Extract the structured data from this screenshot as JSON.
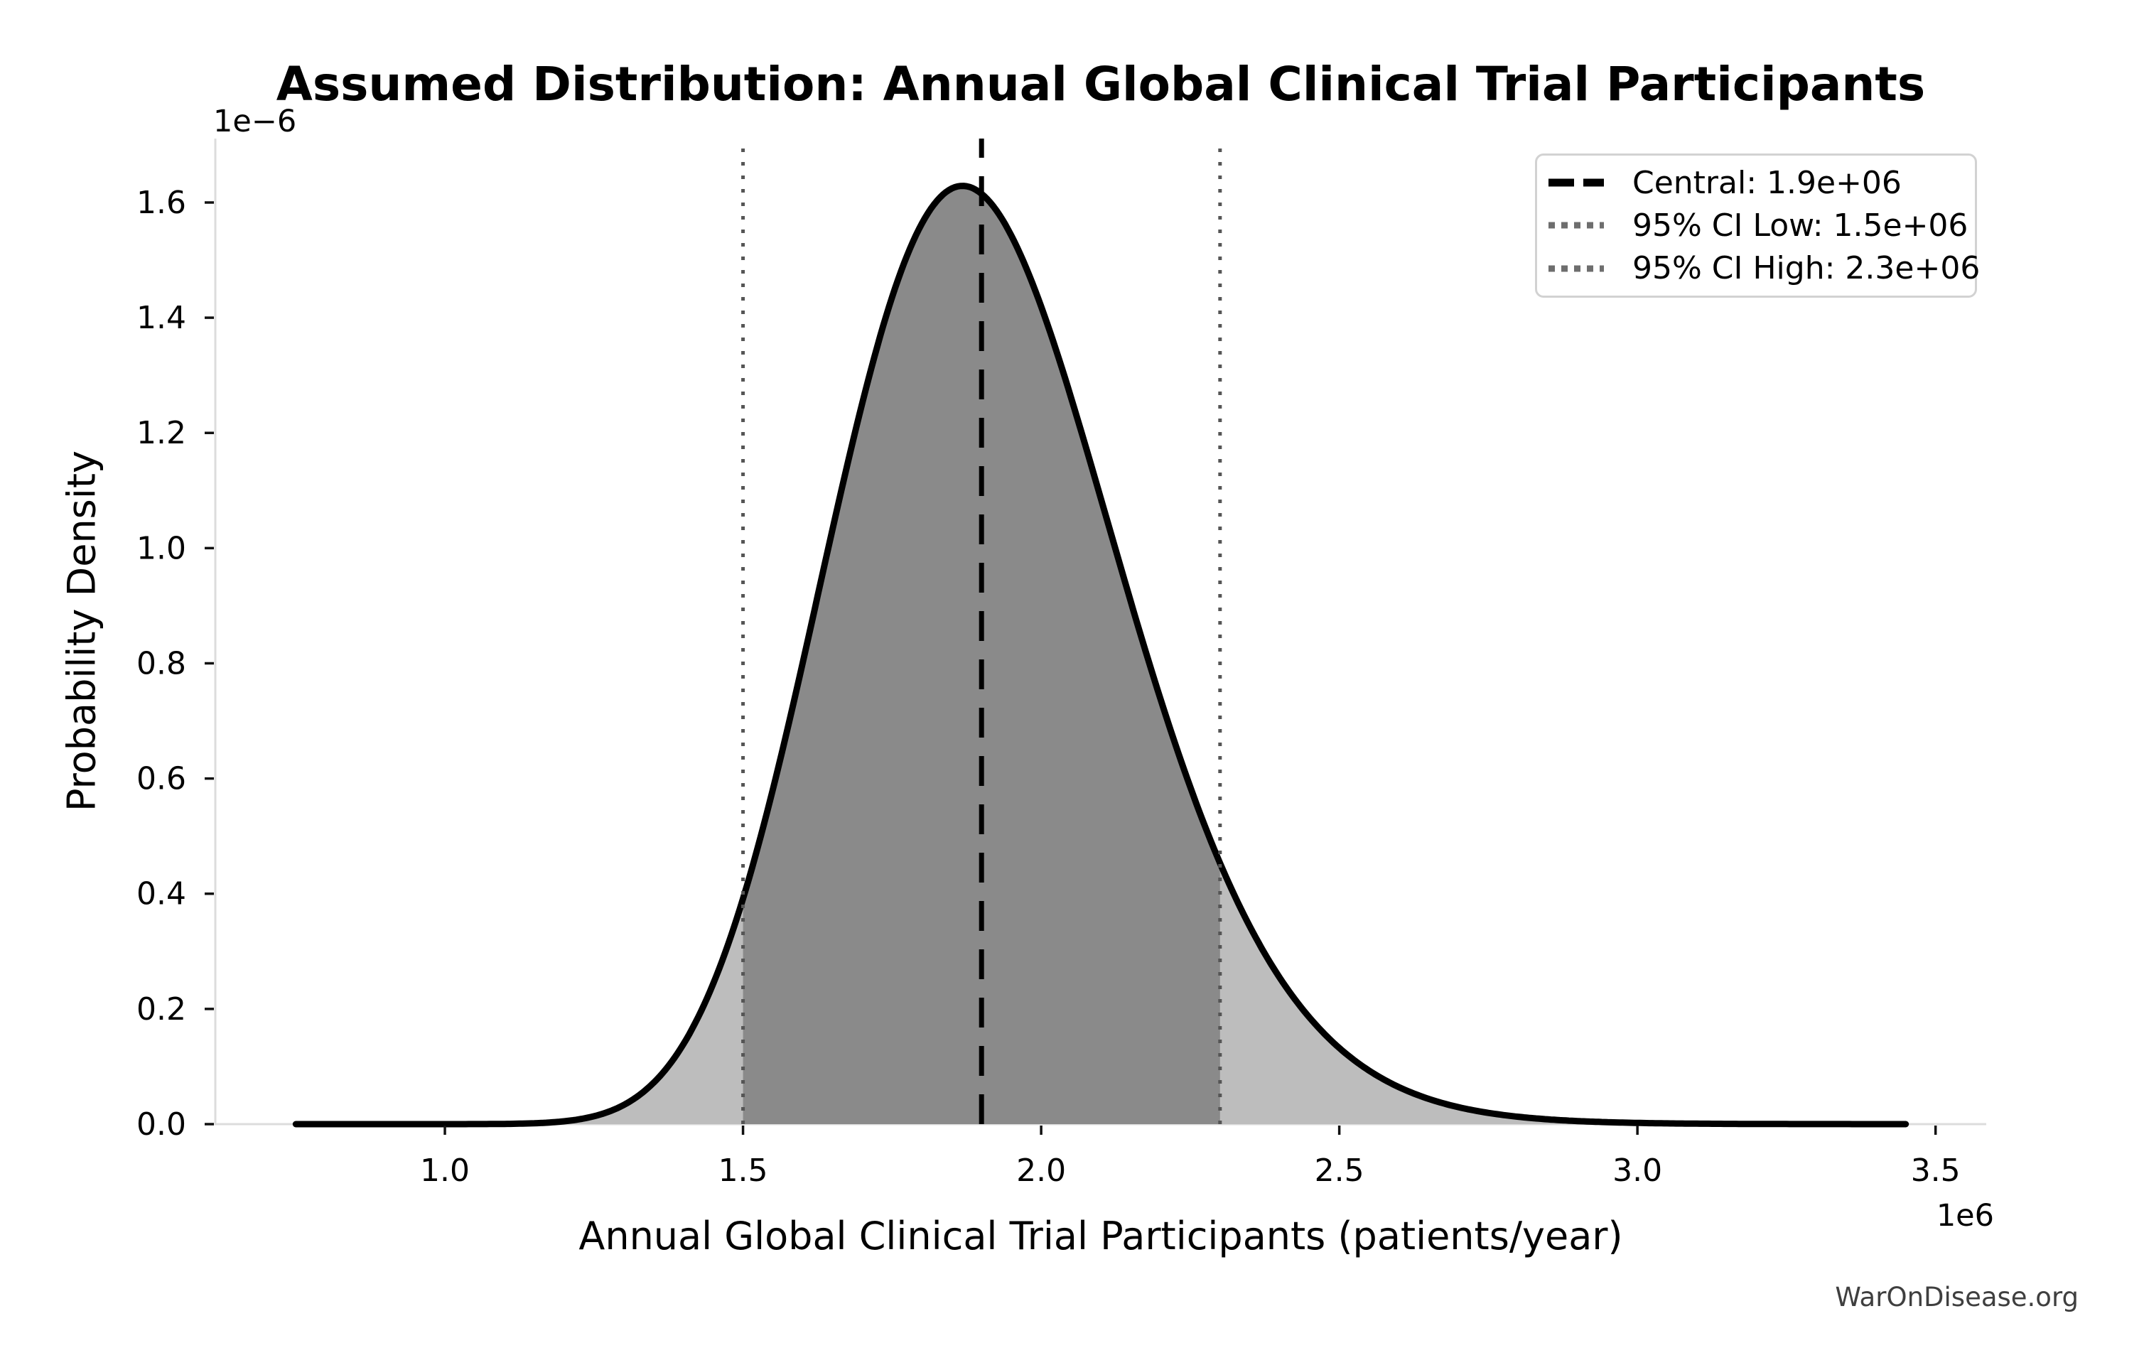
{
  "watermark": "WarOnDisease.org",
  "chart_data": {
    "type": "area",
    "subtype": "probability-density-curve",
    "title": "Assumed Distribution: Annual Global Clinical Trial Participants",
    "xlabel": "Annual Global Clinical Trial Participants (patients/year)",
    "ylabel": "Probability Density",
    "x_offset_text": "1e6",
    "y_offset_text": "1e−6",
    "x_ticks": [
      "1.0",
      "1.5",
      "2.0",
      "2.5",
      "3.0",
      "3.5"
    ],
    "y_ticks": [
      "0.0",
      "0.2",
      "0.4",
      "0.6",
      "0.8",
      "1.0",
      "1.2",
      "1.4",
      "1.6"
    ],
    "xlim_1e6": [
      0.615,
      3.585
    ],
    "ylim_1e6": [
      0,
      1.711
    ],
    "grid": false,
    "curve": {
      "kind": "lognormal_pdf",
      "median_1e6": 1.9,
      "sigma_log": 0.13,
      "x_start_1e6": 0.75,
      "x_end_1e6": 3.45,
      "peak_density_1e6": 1.63,
      "peak_x_1e6": 1.87
    },
    "markers": {
      "central_1e6": 1.9,
      "ci_low_1e6": 1.5,
      "ci_high_1e6": 2.3
    },
    "legend": {
      "position": "upper right",
      "items": [
        {
          "label": "Central: 1.9e+06",
          "style": "dashed",
          "color": "#000000"
        },
        {
          "label": "95% CI Low: 1.5e+06",
          "style": "dotted",
          "color": "#6e6e6e"
        },
        {
          "label": "95% CI High: 2.3e+06",
          "style": "dotted",
          "color": "#6e6e6e"
        }
      ]
    },
    "colors": {
      "curve": "#000000",
      "fill_outer": "#bdbdbd",
      "fill_ci": "#8a8a8a",
      "central_line": "#000000",
      "ci_line": "#555555",
      "spine": "#dcdcdc",
      "tick": "#111111",
      "text": "#000000",
      "watermark": "#3f3f3f"
    }
  }
}
